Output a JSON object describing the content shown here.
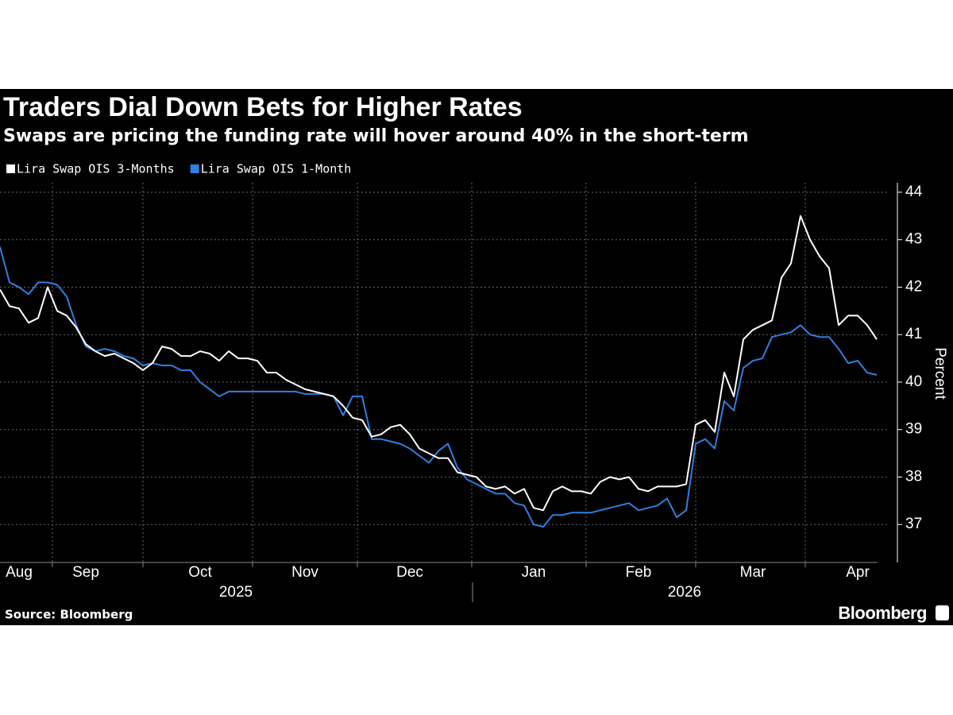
{
  "chart_data": {
    "type": "line",
    "title": "Traders Dial Down Bets for Higher Rates",
    "subtitle": "Swaps are pricing the funding rate will hover around 40% in the short-term",
    "y_label": "Percent",
    "source": "Source: Bloomberg",
    "branding": "Bloomberg",
    "years": [
      "2025",
      "2026"
    ],
    "categories": [
      null,
      null,
      "Aug",
      null,
      null,
      null,
      null,
      null,
      null,
      "Sep",
      null,
      null,
      null,
      null,
      null,
      null,
      null,
      null,
      null,
      null,
      null,
      "Oct",
      null,
      null,
      null,
      null,
      null,
      null,
      null,
      null,
      null,
      null,
      "Nov",
      null,
      null,
      null,
      null,
      null,
      null,
      null,
      null,
      null,
      null,
      "Dec",
      null,
      null,
      null,
      null,
      null,
      null,
      null,
      null,
      null,
      null,
      null,
      null,
      "Jan",
      null,
      null,
      null,
      null,
      null,
      null,
      null,
      null,
      null,
      null,
      "Feb",
      null,
      null,
      null,
      null,
      null,
      null,
      null,
      null,
      null,
      null,
      null,
      "Mar",
      null,
      null,
      null,
      null,
      null,
      null,
      null,
      null,
      null,
      null,
      "Apr",
      null,
      null
    ],
    "series": [
      {
        "name": "Lira Swap OIS 3-Months",
        "color": "#ffffff",
        "values": [
          41.95,
          41.6,
          41.55,
          41.25,
          41.35,
          42.0,
          41.5,
          41.4,
          41.15,
          40.8,
          40.65,
          40.55,
          40.6,
          40.5,
          40.4,
          40.25,
          40.4,
          40.75,
          40.7,
          40.55,
          40.55,
          40.65,
          40.6,
          40.45,
          40.65,
          40.5,
          40.5,
          40.45,
          40.2,
          40.2,
          40.05,
          39.95,
          39.85,
          39.8,
          39.75,
          39.7,
          39.5,
          39.25,
          39.2,
          38.85,
          38.9,
          39.05,
          39.1,
          38.9,
          38.6,
          38.5,
          38.4,
          38.4,
          38.1,
          38.05,
          38.0,
          37.8,
          37.75,
          37.8,
          37.65,
          37.75,
          37.35,
          37.3,
          37.7,
          37.8,
          37.7,
          37.7,
          37.65,
          37.9,
          38.0,
          37.95,
          38.0,
          37.75,
          37.7,
          37.8,
          37.8,
          37.8,
          37.85,
          39.1,
          39.2,
          38.95,
          40.2,
          39.7,
          40.9,
          41.1,
          41.2,
          41.3,
          42.2,
          42.5,
          43.5,
          43.0,
          42.65,
          42.4,
          41.2,
          41.4,
          41.4,
          41.2,
          40.9
        ]
      },
      {
        "name": "Lira Swap OIS 1-Month",
        "color": "#2f7fe0",
        "values": [
          42.85,
          42.1,
          42.0,
          41.85,
          42.1,
          42.1,
          42.05,
          41.8,
          41.2,
          40.75,
          40.65,
          40.7,
          40.65,
          40.55,
          40.5,
          40.35,
          40.4,
          40.35,
          40.35,
          40.25,
          40.25,
          40.0,
          39.85,
          39.7,
          39.8,
          39.8,
          39.8,
          39.8,
          39.8,
          39.8,
          39.8,
          39.8,
          39.75,
          39.75,
          39.75,
          39.7,
          39.3,
          39.7,
          39.7,
          38.8,
          38.8,
          38.75,
          38.7,
          38.6,
          38.45,
          38.3,
          38.55,
          38.7,
          38.2,
          37.95,
          37.85,
          37.75,
          37.65,
          37.65,
          37.45,
          37.4,
          37.0,
          36.95,
          37.2,
          37.2,
          37.25,
          37.25,
          37.25,
          37.3,
          37.35,
          37.4,
          37.45,
          37.3,
          37.35,
          37.4,
          37.55,
          37.15,
          37.3,
          38.7,
          38.8,
          38.6,
          39.6,
          39.4,
          40.3,
          40.45,
          40.5,
          40.95,
          41.0,
          41.05,
          41.2,
          41.0,
          40.95,
          40.95,
          40.7,
          40.4,
          40.45,
          40.2,
          40.15
        ]
      }
    ],
    "ylim": [
      36.2,
      44.2
    ],
    "yticks": [
      37,
      38,
      39,
      40,
      41,
      42,
      43,
      44
    ],
    "grid": true,
    "legend": "top-left"
  }
}
